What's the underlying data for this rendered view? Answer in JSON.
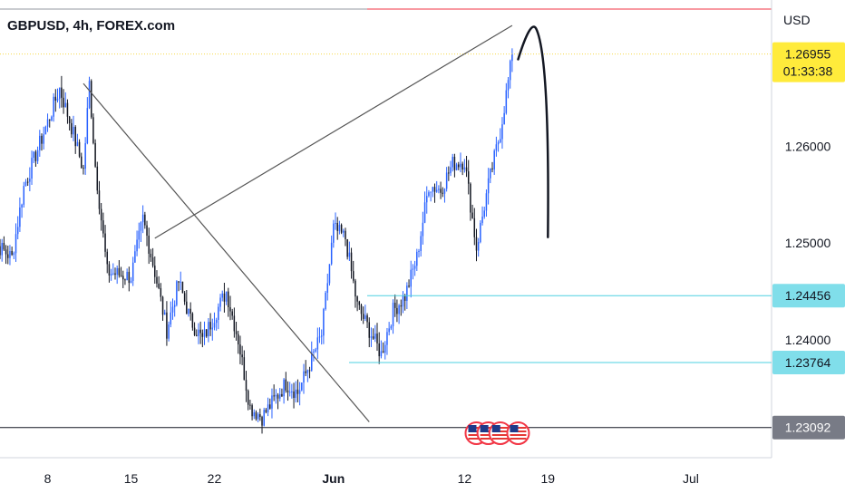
{
  "header": {
    "title": "GBPUSD, 4h, FOREX.com",
    "currency": "USD"
  },
  "colors": {
    "up": "#2962ff",
    "down": "#131722",
    "current_price_line": "#f7d948",
    "current_price_bg": "#ffeb3b",
    "level_line": "#4dd0e1",
    "level_bg": "#80deea",
    "bottom_level_bg": "#787b86",
    "red_line": "#f23645",
    "trendline": "#555555"
  },
  "chart_data": {
    "type": "candlestick",
    "symbol": "GBPUSD",
    "interval": "4h",
    "y_axis": {
      "ticks": [
        "1.26000",
        "1.25000",
        "1.24000"
      ],
      "range": [
        1.2278,
        1.2742
      ]
    },
    "x_axis": {
      "ticks": [
        "8",
        "15",
        "22",
        "Jun",
        "12",
        "19",
        "Jul"
      ]
    },
    "x_range": [
      "2023-05-04",
      "2023-07-06"
    ],
    "price_labels": {
      "current_price": "1.26955",
      "countdown": "01:33:38",
      "level_1": "1.24456",
      "level_2": "1.23764",
      "level_3": "1.23092"
    },
    "level_values": [
      1.24456,
      1.23764,
      1.23092
    ],
    "current_price_value": 1.26955,
    "anchors": [
      {
        "t": "2023-05-03",
        "p": 1.2505
      },
      {
        "t": "2023-05-05",
        "p": 1.2485
      },
      {
        "t": "2023-05-06",
        "p": 1.2558
      },
      {
        "t": "2023-05-08",
        "p": 1.2625
      },
      {
        "t": "2023-05-09",
        "p": 1.266
      },
      {
        "t": "2023-05-10",
        "p": 1.262
      },
      {
        "t": "2023-05-11",
        "p": 1.2575
      },
      {
        "t": "2023-05-11T12",
        "p": 1.2665
      },
      {
        "t": "2023-05-12",
        "p": 1.258
      },
      {
        "t": "2023-05-13",
        "p": 1.247
      },
      {
        "t": "2023-05-15",
        "p": 1.2465
      },
      {
        "t": "2023-05-16",
        "p": 1.2525
      },
      {
        "t": "2023-05-17",
        "p": 1.247
      },
      {
        "t": "2023-05-18",
        "p": 1.241
      },
      {
        "t": "2023-05-19",
        "p": 1.246
      },
      {
        "t": "2023-05-20",
        "p": 1.242
      },
      {
        "t": "2023-05-21",
        "p": 1.24
      },
      {
        "t": "2023-05-23",
        "p": 1.245
      },
      {
        "t": "2023-05-24",
        "p": 1.24
      },
      {
        "t": "2023-05-25",
        "p": 1.233
      },
      {
        "t": "2023-05-26",
        "p": 1.232
      },
      {
        "t": "2023-05-28",
        "p": 1.2355
      },
      {
        "t": "2023-05-29",
        "p": 1.2345
      },
      {
        "t": "2023-05-30",
        "p": 1.2375
      },
      {
        "t": "2023-05-31",
        "p": 1.2405
      },
      {
        "t": "2023-06-01",
        "p": 1.2515
      },
      {
        "t": "2023-06-02",
        "p": 1.2505
      },
      {
        "t": "2023-06-03",
        "p": 1.2435
      },
      {
        "t": "2023-06-05",
        "p": 1.2385
      },
      {
        "t": "2023-06-06",
        "p": 1.243
      },
      {
        "t": "2023-06-07",
        "p": 1.2445
      },
      {
        "t": "2023-06-08",
        "p": 1.2485
      },
      {
        "t": "2023-06-09",
        "p": 1.256
      },
      {
        "t": "2023-06-10",
        "p": 1.2555
      },
      {
        "t": "2023-06-11",
        "p": 1.2582
      },
      {
        "t": "2023-06-12",
        "p": 1.2585
      },
      {
        "t": "2023-06-13",
        "p": 1.2495
      },
      {
        "t": "2023-06-14",
        "p": 1.256
      },
      {
        "t": "2023-06-15",
        "p": 1.2615
      },
      {
        "t": "2023-06-16",
        "p": 1.2693
      }
    ],
    "trendlines": [
      {
        "from": {
          "t": "2023-05-11",
          "p": 1.2665
        },
        "to": {
          "t": "2023-06-04",
          "p": 1.2315
        }
      },
      {
        "from": {
          "t": "2023-05-17",
          "p": 1.2505
        },
        "to": {
          "t": "2023-06-16",
          "p": 1.2725
        }
      }
    ],
    "projection_arrow": {
      "start": {
        "t": "2023-06-16T12",
        "p": 1.269
      },
      "peak": {
        "t": "2023-06-18",
        "p": 1.2722
      },
      "end": {
        "t": "2023-06-19",
        "p": 1.2506
      }
    },
    "events": [
      {
        "t": "2023-06-13",
        "icon": "us-flag-icon"
      },
      {
        "t": "2023-06-14",
        "icon": "us-flag-icon"
      },
      {
        "t": "2023-06-15",
        "icon": "us-flag-icon"
      },
      {
        "t": "2023-06-16T12",
        "icon": "us-flag-icon"
      }
    ]
  }
}
